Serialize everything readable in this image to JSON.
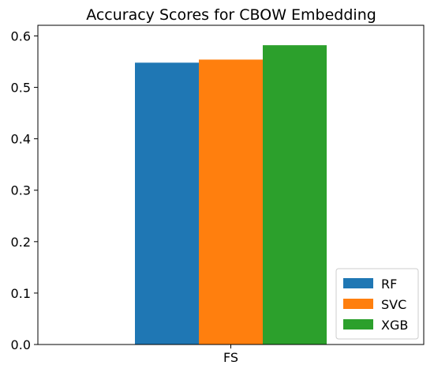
{
  "chart_data": {
    "type": "bar",
    "title": "Accuracy Scores for CBOW Embedding",
    "categories": [
      "FS"
    ],
    "series": [
      {
        "name": "RF",
        "values": [
          0.548
        ],
        "color": "#1f77b4"
      },
      {
        "name": "SVC",
        "values": [
          0.554
        ],
        "color": "#ff7f0e"
      },
      {
        "name": "XGB",
        "values": [
          0.582
        ],
        "color": "#2ca02c"
      }
    ],
    "xlabel": "",
    "ylabel": "",
    "ylim": [
      0.0,
      0.6
    ],
    "yticks": [
      0.0,
      0.1,
      0.2,
      0.3,
      0.4,
      0.5,
      0.6
    ],
    "ytick_labels": [
      "0.0",
      "0.1",
      "0.2",
      "0.3",
      "0.4",
      "0.5",
      "0.6"
    ],
    "grid": false,
    "legend_position": "bottom-right"
  }
}
